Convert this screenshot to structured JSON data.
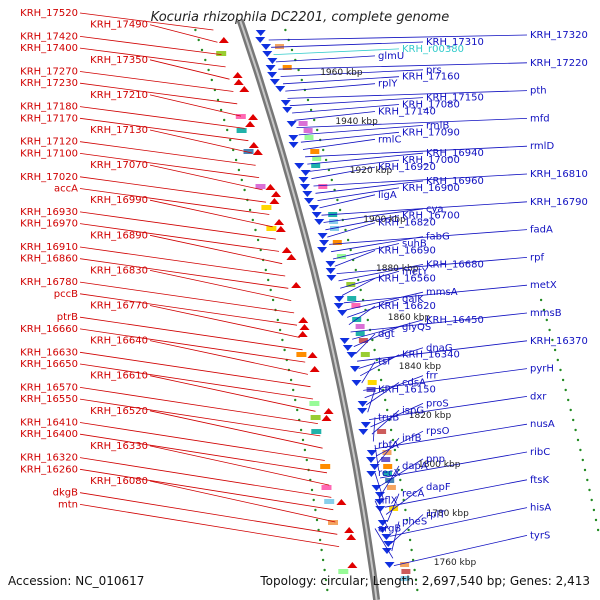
{
  "title": "Kocuria rhizophila DC2201, complete genome",
  "footer": {
    "accession": "Accession: NC_010617",
    "summary": "Topology: circular; Length: 2,697,540 bp; Genes: 2,413"
  },
  "colors": {
    "left_labels": "#d00000",
    "right_labels": "#1010c0",
    "rna_label": "#33cccc",
    "dots": "#228b22"
  },
  "kbp_marks": [
    "1960 kbp",
    "1940 kbp",
    "1920 kbp",
    "1900 kbp",
    "1880 kbp",
    "1860 kbp",
    "1840 kbp",
    "1820 kbp",
    "1800 kbp",
    "1780 kbp",
    "1760 kbp"
  ],
  "left_labels": [
    "KRH_17520",
    "KRH_17490",
    "KRH_17420",
    "KRH_17400",
    "KRH_17350",
    "KRH_17270",
    "KRH_17230",
    "KRH_17210",
    "KRH_17180",
    "KRH_17170",
    "KRH_17130",
    "KRH_17120",
    "KRH_17100",
    "KRH_17070",
    "KRH_17020",
    "accA",
    "KRH_16990",
    "KRH_16930",
    "KRH_16970",
    "KRH_16890",
    "KRH_16910",
    "KRH_16860",
    "KRH_16830",
    "KRH_16780",
    "pccB",
    "KRH_16770",
    "ptrB",
    "KRH_16660",
    "KRH_16640",
    "KRH_16630",
    "KRH_16650",
    "KRH_16610",
    "KRH_16570",
    "KRH_16550",
    "KRH_16520",
    "KRH_16410",
    "KRH_16400",
    "KRH_16330",
    "KRH_16320",
    "KRH_16260",
    "KRH_16080",
    "dkgB",
    "mtn"
  ],
  "right_labels": [
    "KRH_17320",
    "KRH_17310",
    "KRH_r00380",
    "glmU",
    "KRH_17220",
    "prs",
    "KRH_17160",
    "rplY",
    "pth",
    "KRH_17150",
    "KRH_17080",
    "KRH_17140",
    "mfd",
    "rmlB",
    "KRH_17090",
    "rmlC",
    "rmlD",
    "KRH_16940",
    "KRH_17000",
    "KRH_16920",
    "KRH_16810",
    "KRH_16960",
    "KRH_16900",
    "ligA",
    "KRH_16790",
    "cya",
    "KRH_16700",
    "KRH_16820",
    "fadA",
    "fabG",
    "suhB",
    "KRH_16690",
    "rpf",
    "KRH_16680",
    "metY",
    "KRH_16560",
    "metX",
    "mmsA",
    "galK",
    "KRH_16620",
    "mmsB",
    "KRH_16450",
    "glyQS",
    "dgt",
    "KRH_16370",
    "dnaG",
    "KRH_16340",
    "tsf",
    "pyrH",
    "frr",
    "cdsA",
    "KRH_16150",
    "dxr",
    "proS",
    "ispG",
    "truB",
    "nusA",
    "rpsO",
    "infB",
    "rbfA",
    "ribC",
    "pnp",
    "dapA",
    "recX",
    "ftsK",
    "dapF",
    "recA",
    "hflX",
    "hisA",
    "rplT",
    "pheS",
    "argB",
    "tyrS"
  ]
}
